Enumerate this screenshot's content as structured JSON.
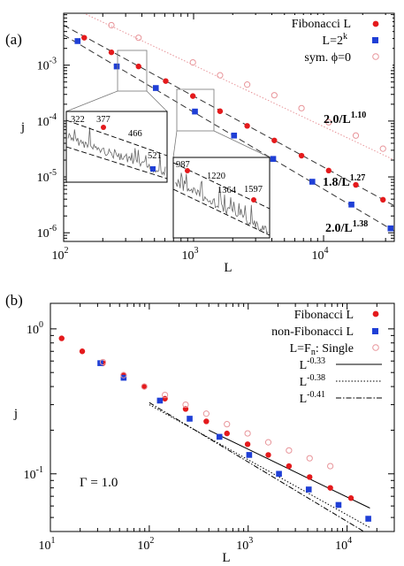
{
  "chart_data": [
    {
      "panel_label": "(a)",
      "type": "scatter",
      "xlabel": "L",
      "ylabel": "j",
      "x_scale": "log",
      "y_scale": "log",
      "xlim": [
        100,
        35000
      ],
      "ylim": [
        7e-07,
        0.0085
      ],
      "x_ticks": [
        {
          "value": 100,
          "label": "10",
          "exp": "2"
        },
        {
          "value": 1000,
          "label": "10",
          "exp": "3"
        },
        {
          "value": 10000,
          "label": "10",
          "exp": "4"
        }
      ],
      "y_ticks": [
        {
          "value": 1e-06,
          "label": "10",
          "exp": "-6"
        },
        {
          "value": 1e-05,
          "label": "10",
          "exp": "-5"
        },
        {
          "value": 0.0001,
          "label": "10",
          "exp": "-4"
        },
        {
          "value": 0.001,
          "label": "10",
          "exp": "-3"
        }
      ],
      "legend_position": "top-right",
      "series": [
        {
          "name": "Fibonacci L",
          "marker": "filled-circle",
          "color": "#e41a1c",
          "x": [
            144,
            233,
            377,
            610,
            987,
            1597,
            2584,
            4181,
            6765,
            10946,
            17711,
            28657
          ],
          "y": [
            0.0031,
            0.0017,
            0.00095,
            0.00052,
            0.00028,
            0.00015,
            8.2e-05,
            4.5e-05,
            2.4e-05,
            1.3e-05,
            7.2e-06,
            3.9e-06
          ]
        },
        {
          "name": "L=2",
          "name_sup": "k",
          "marker": "filled-square",
          "color": "#1f3fd6",
          "x": [
            128,
            256,
            512,
            1024,
            2048,
            4096,
            8192,
            16384,
            32768
          ],
          "y": [
            0.0027,
            0.00095,
            0.00039,
            0.000148,
            5.5e-05,
            2.1e-05,
            8.2e-06,
            3.2e-06,
            1.2e-06
          ]
        },
        {
          "name": "sym. ϕ=0",
          "marker": "open-circle",
          "color": "#e8959a",
          "x": [
            233,
            377,
            987,
            1597,
            2584,
            4181,
            6765,
            10946,
            17711,
            28657
          ],
          "y": [
            0.0052,
            0.0031,
            0.00112,
            0.00066,
            0.00045,
            0.00029,
            0.00017,
            9.5e-05,
            5.5e-05,
            3.2e-05
          ]
        }
      ],
      "fits": [
        {
          "label": "2.0/L",
          "exp": "1.10",
          "style": "dotted",
          "color": "#e8959a",
          "prefactor": 2.0,
          "power": 1.1
        },
        {
          "label": "1.8/L",
          "exp": "1.27",
          "style": "dashed",
          "color": "#333333",
          "prefactor": 1.8,
          "power": 1.27
        },
        {
          "label": "2.0/L",
          "exp": "1.38",
          "style": "dashed",
          "color": "#333333",
          "prefactor": 2.0,
          "power": 1.38
        }
      ],
      "insets": [
        {
          "labels": [
            "322",
            "377",
            "466",
            "521"
          ]
        },
        {
          "labels": [
            "987",
            "1220",
            "1364",
            "1597"
          ]
        }
      ]
    },
    {
      "panel_label": "(b)",
      "type": "scatter",
      "xlabel": "L",
      "ylabel": "j",
      "x_scale": "log",
      "y_scale": "log",
      "xlim": [
        10,
        30000
      ],
      "ylim": [
        0.04,
        1.5
      ],
      "x_ticks": [
        {
          "value": 10,
          "label": "10",
          "exp": "1"
        },
        {
          "value": 100,
          "label": "10",
          "exp": "2"
        },
        {
          "value": 1000,
          "label": "10",
          "exp": "3"
        },
        {
          "value": 10000,
          "label": "10",
          "exp": "4"
        }
      ],
      "y_ticks": [
        {
          "value": 0.1,
          "label": "10",
          "exp": "-1"
        },
        {
          "value": 1.0,
          "label": "10",
          "exp": "0"
        }
      ],
      "annotation": "Γ = 1.0",
      "legend_position": "top-right",
      "series": [
        {
          "name": "Fibonacci L",
          "marker": "filled-circle",
          "color": "#e41a1c",
          "x": [
            13,
            21,
            34,
            55,
            89,
            144,
            233,
            377,
            610,
            987,
            1597,
            2584,
            4181,
            6765,
            10946
          ],
          "y": [
            0.86,
            0.7,
            0.58,
            0.48,
            0.4,
            0.33,
            0.28,
            0.23,
            0.19,
            0.16,
            0.135,
            0.113,
            0.095,
            0.08,
            0.068
          ]
        },
        {
          "name": "non-Fibonacci L",
          "marker": "filled-square",
          "color": "#1f3fd6",
          "x": [
            32,
            55,
            128,
            256,
            512,
            1024,
            2048,
            4096,
            8192,
            16384
          ],
          "y": [
            0.58,
            0.46,
            0.32,
            0.24,
            0.18,
            0.135,
            0.1,
            0.078,
            0.061,
            0.049
          ]
        },
        {
          "name": "L=F",
          "name_sub": "n",
          "name_tail": ": Single",
          "marker": "open-circle",
          "color": "#e8959a",
          "x": [
            34,
            55,
            89,
            144,
            233,
            377,
            610,
            987,
            1597,
            2584,
            4181,
            6765
          ],
          "y": [
            0.59,
            0.48,
            0.4,
            0.35,
            0.3,
            0.26,
            0.22,
            0.19,
            0.165,
            0.145,
            0.128,
            0.113
          ]
        }
      ],
      "fits": [
        {
          "label": "L",
          "exp": "-0.33",
          "style": "solid",
          "color": "#000000",
          "power": -0.33,
          "x_range": [
            400,
            17000
          ],
          "y_at_start": 0.2
        },
        {
          "label": "L",
          "exp": "-0.38",
          "style": "dotted",
          "color": "#000000",
          "power": -0.38,
          "x_range": [
            100,
            17000
          ],
          "y_at_start": 0.3
        },
        {
          "label": "L",
          "exp": "-0.41",
          "style": "dash-dot",
          "color": "#000000",
          "power": -0.41,
          "x_range": [
            100,
            17000
          ],
          "y_at_start": 0.31
        }
      ]
    }
  ]
}
